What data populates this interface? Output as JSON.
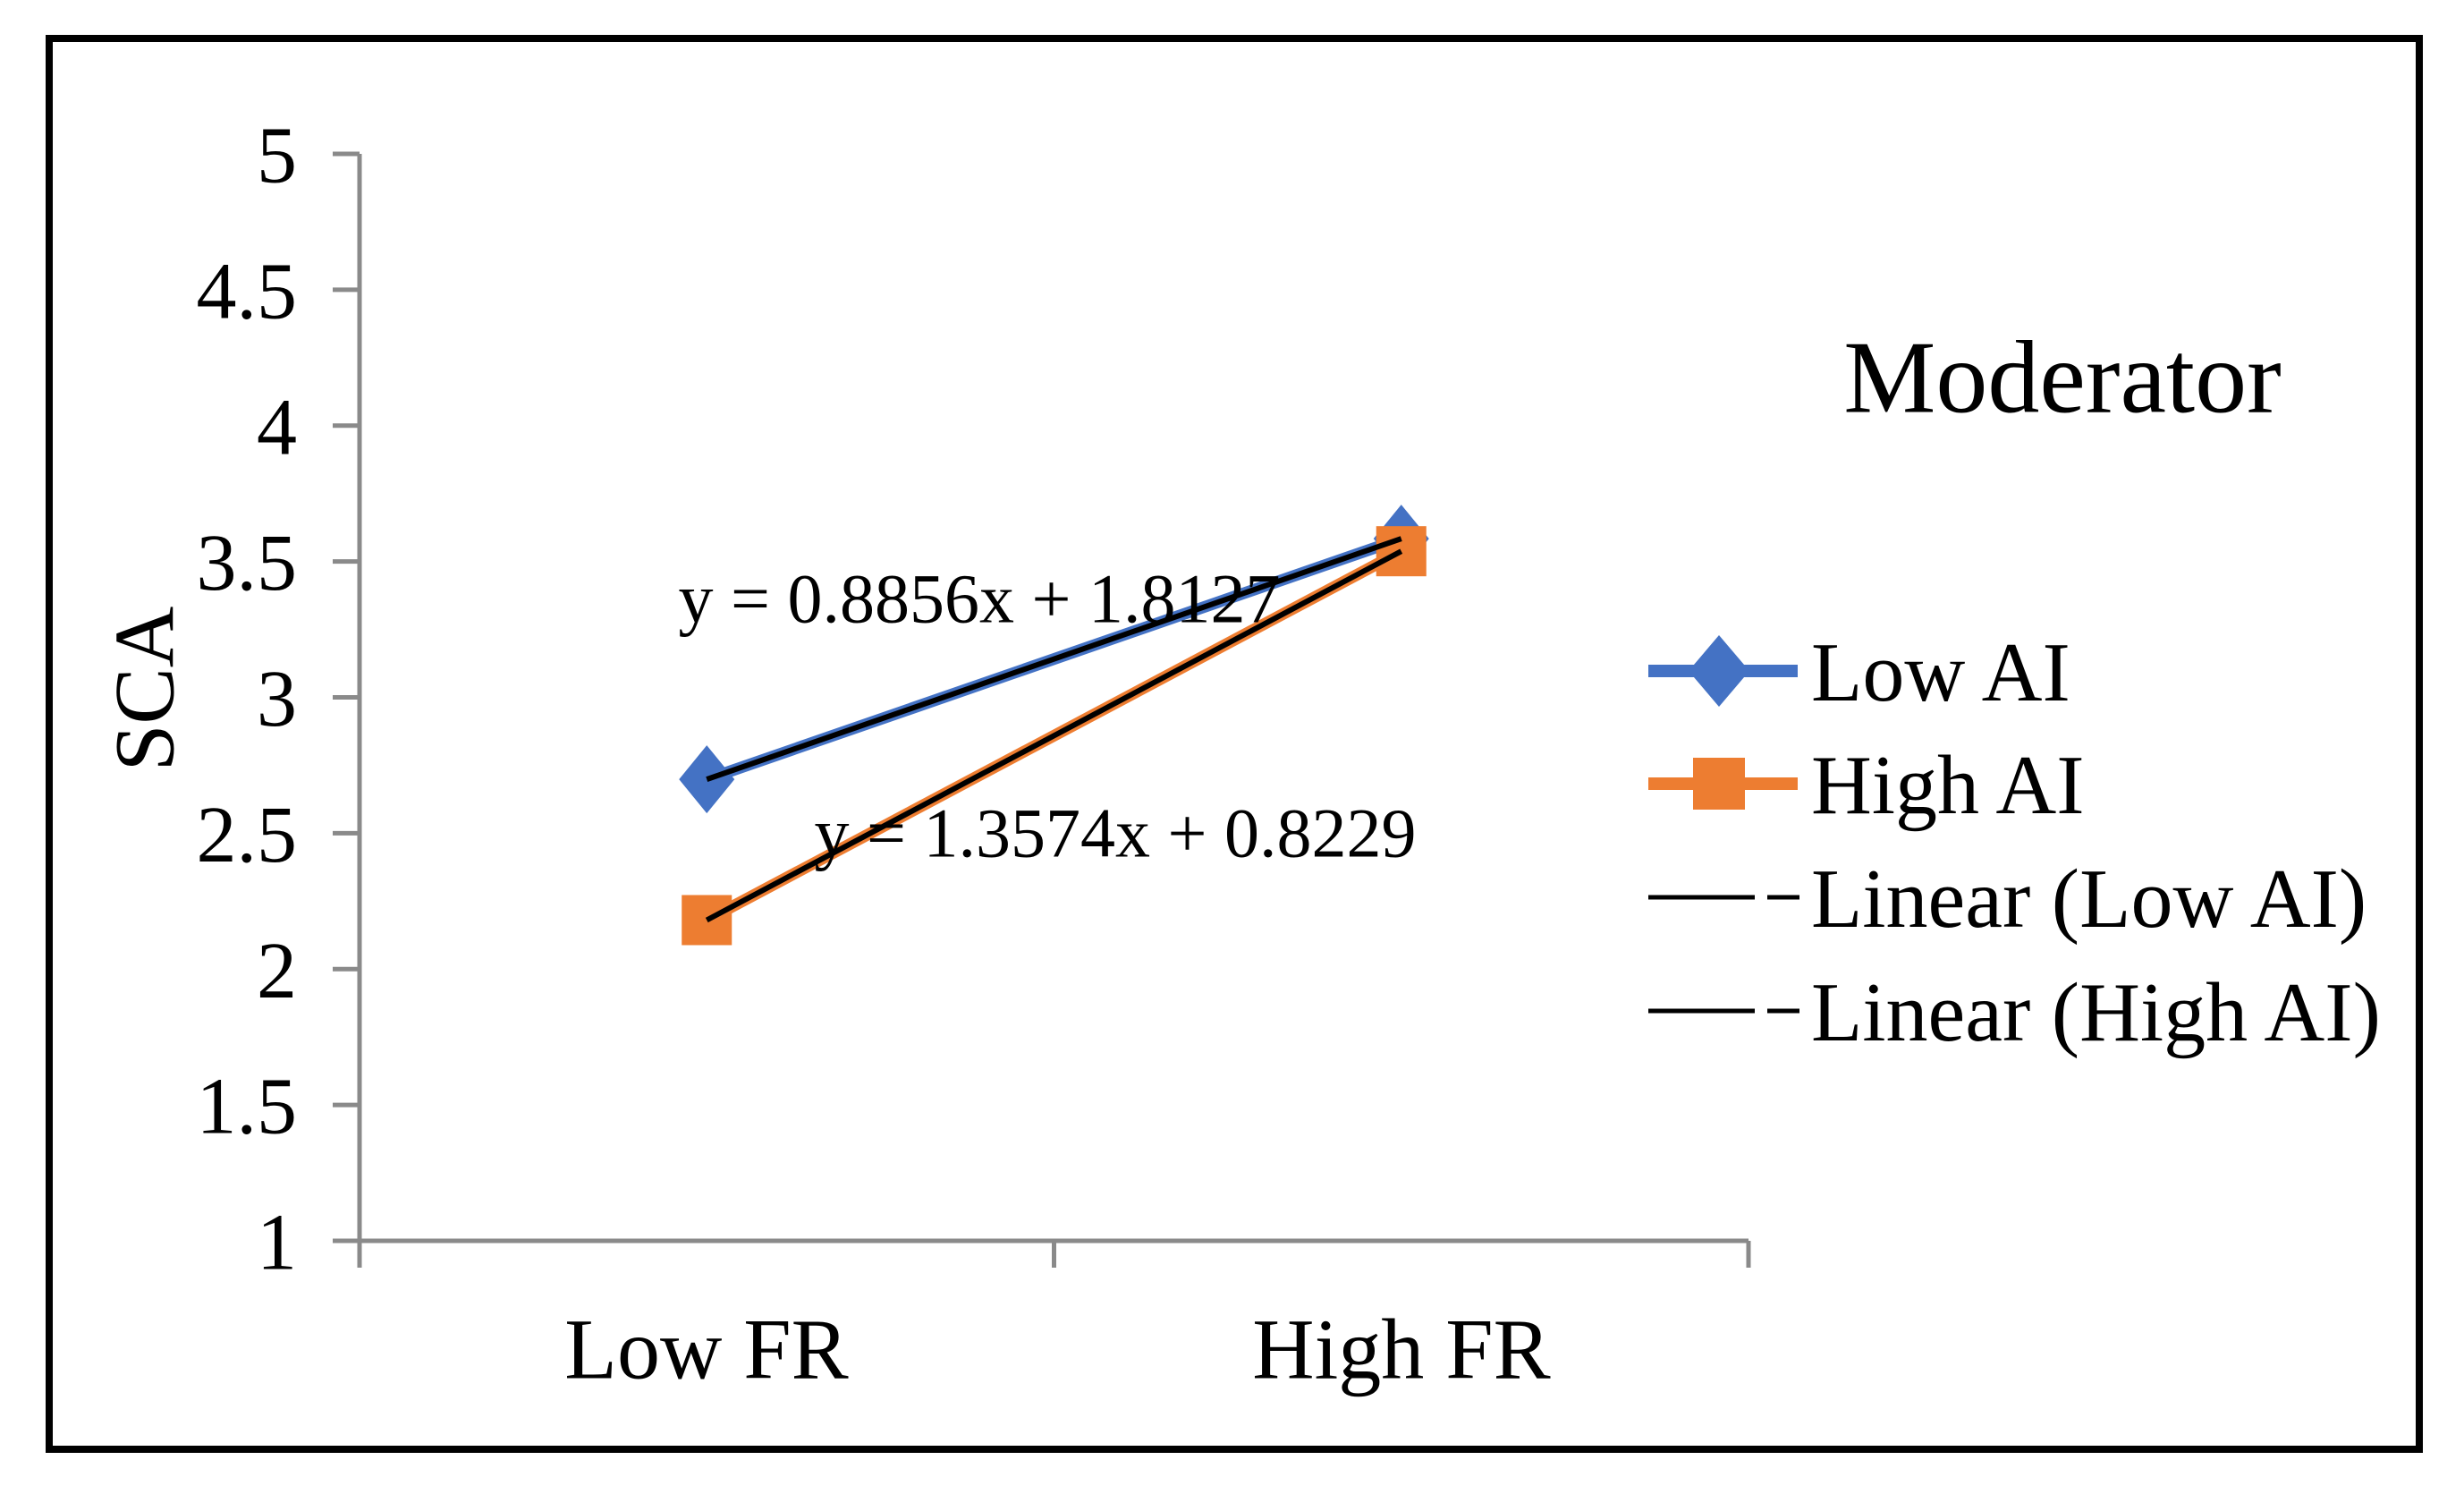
{
  "chart_data": {
    "type": "line",
    "title": "",
    "xlabel": "",
    "ylabel": "SCA",
    "categories": [
      "Low FR",
      "High FR"
    ],
    "ylim": [
      1,
      5
    ],
    "ytick_step": 0.5,
    "yticks": [
      "5",
      "4.5",
      "4",
      "3.5",
      "3",
      "2.5",
      "2",
      "1.5",
      "1"
    ],
    "grid": false,
    "plot_background": "#FFFFFF",
    "axis_color": "#8A8A8A",
    "text_color": "#000000",
    "border_color": "#000000",
    "trendline_color": "#000000",
    "series": [
      {
        "name": "Low AI",
        "color": "#4472C4",
        "marker": "diamond",
        "values": [
          2.6983,
          3.5839
        ],
        "trendline": true
      },
      {
        "name": "High AI",
        "color": "#ED7D31",
        "marker": "square",
        "values": [
          2.1803,
          3.5377
        ],
        "trendline": true
      }
    ],
    "annotations": [
      {
        "text": "y = 0.8856x + 1.8127",
        "series": "Low AI"
      },
      {
        "text": "y = 1.3574x + 0.8229",
        "series": "High AI"
      }
    ],
    "legend": {
      "title": "Moderator",
      "position": "right",
      "entries": [
        "Low AI",
        "High AI",
        "Linear (Low AI)",
        "Linear (High AI)"
      ]
    }
  }
}
